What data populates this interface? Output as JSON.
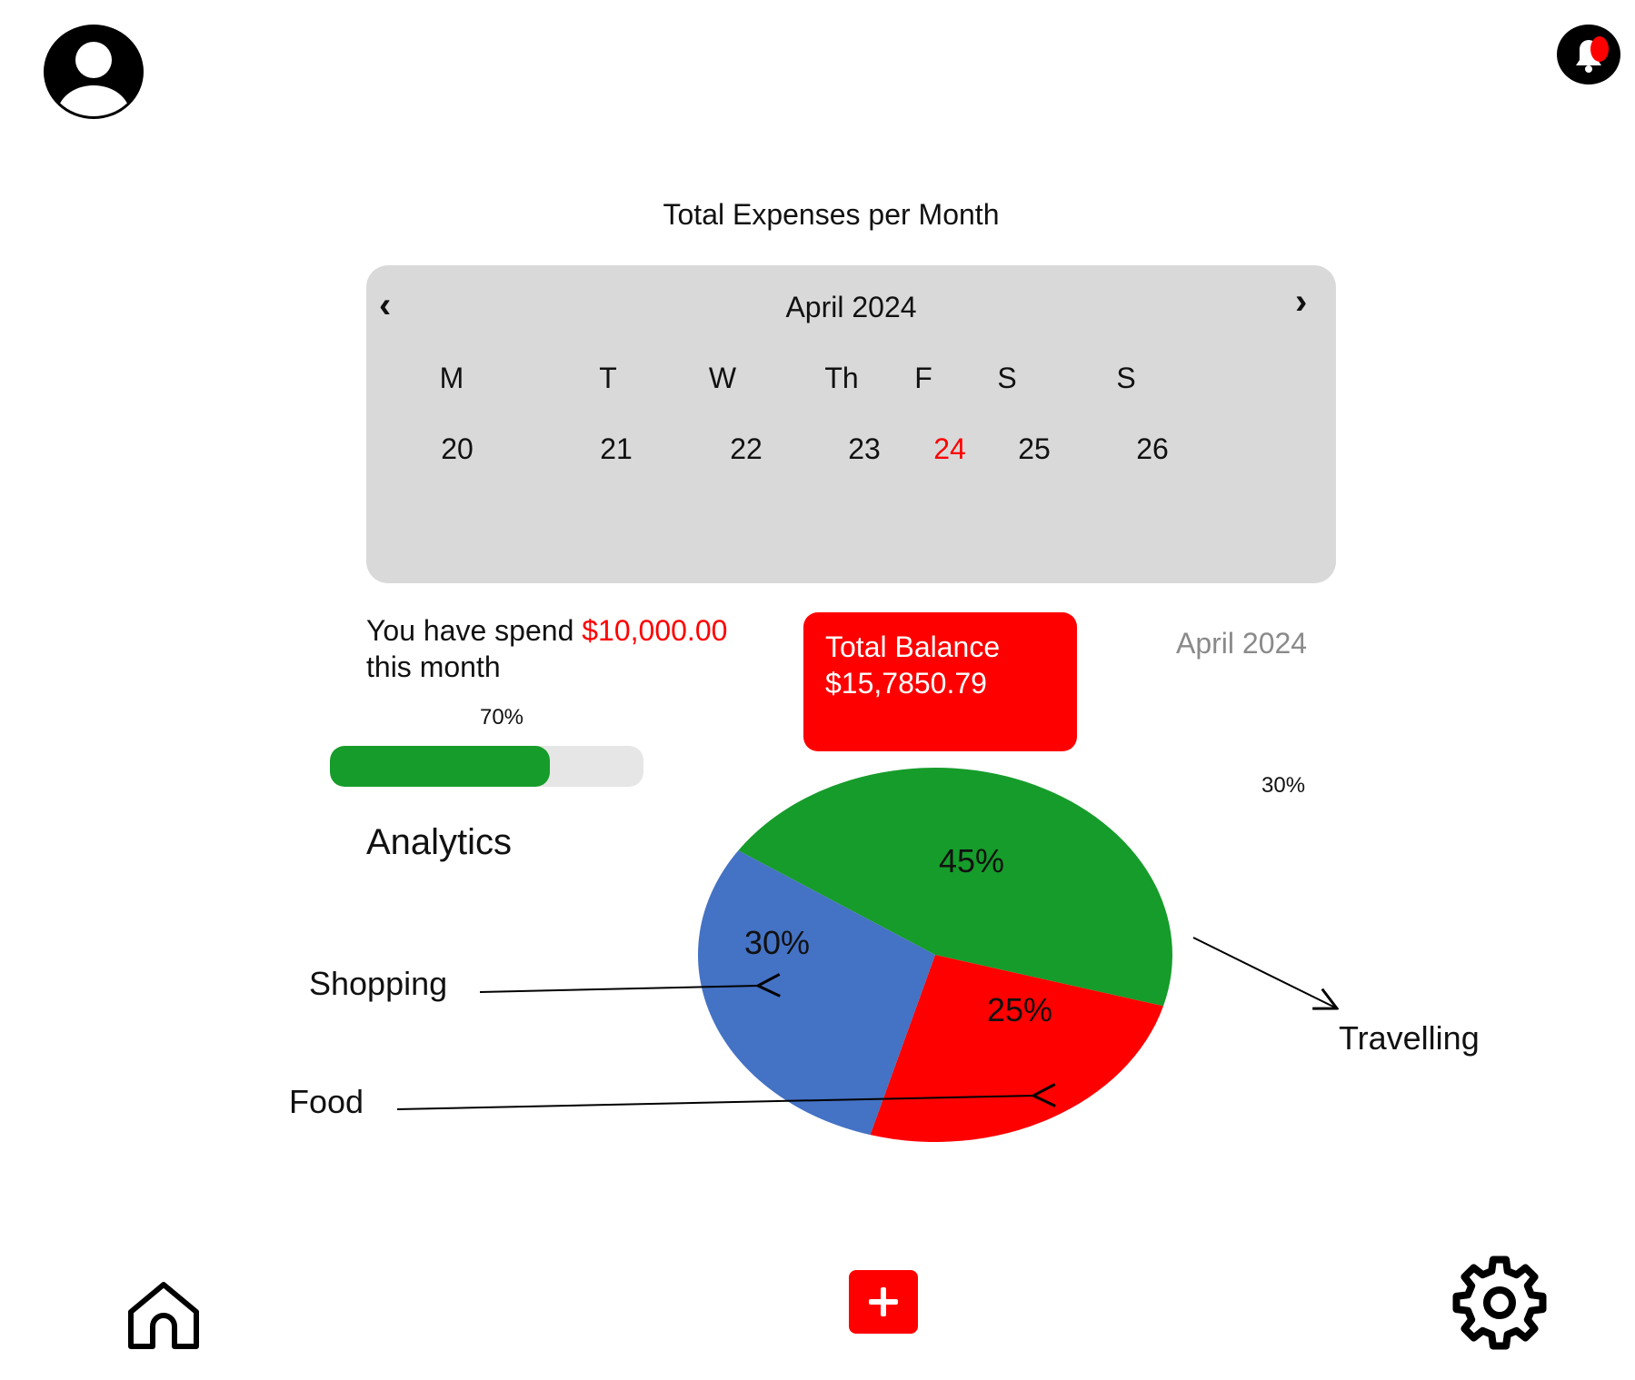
{
  "header": {
    "avatar_icon": "user-avatar-icon",
    "notifications_icon": "bell-alert-icon"
  },
  "title": "Total Expenses per Month",
  "calendar": {
    "month_label": "April 2024",
    "prev_icon": "chevron-left-icon",
    "next_icon": "chevron-right-icon",
    "weekdays": [
      "M",
      "T",
      "W",
      "Th",
      "F",
      "S",
      "S"
    ],
    "dates": [
      "20",
      "21",
      "22",
      "23",
      "24",
      "25",
      "26"
    ],
    "highlighted_date": "24",
    "highlight_color": "#ff0000"
  },
  "spending": {
    "prefix": "You have spend",
    "amount": "$10,000.00",
    "suffix": "this month",
    "progress_label": "70%",
    "progress_value": 70,
    "progress_color": "#169c2a"
  },
  "balance": {
    "label": "Total Balance",
    "amount": "$15,7850.79",
    "month": "April 2024"
  },
  "stray_label": "30%",
  "analytics": {
    "heading": "Analytics"
  },
  "chart_data": {
    "type": "pie",
    "slices": [
      {
        "label": "Travelling",
        "value": 45,
        "display": "45%",
        "color": "#169c2a"
      },
      {
        "label": "Food",
        "value": 25,
        "display": "25%",
        "color": "#ff0000"
      },
      {
        "label": "Shopping",
        "value": 30,
        "display": "30%",
        "color": "#4472c4"
      }
    ]
  },
  "bottom_nav": {
    "home_icon": "home-icon",
    "add_icon": "plus-icon",
    "settings_icon": "gear-icon"
  }
}
